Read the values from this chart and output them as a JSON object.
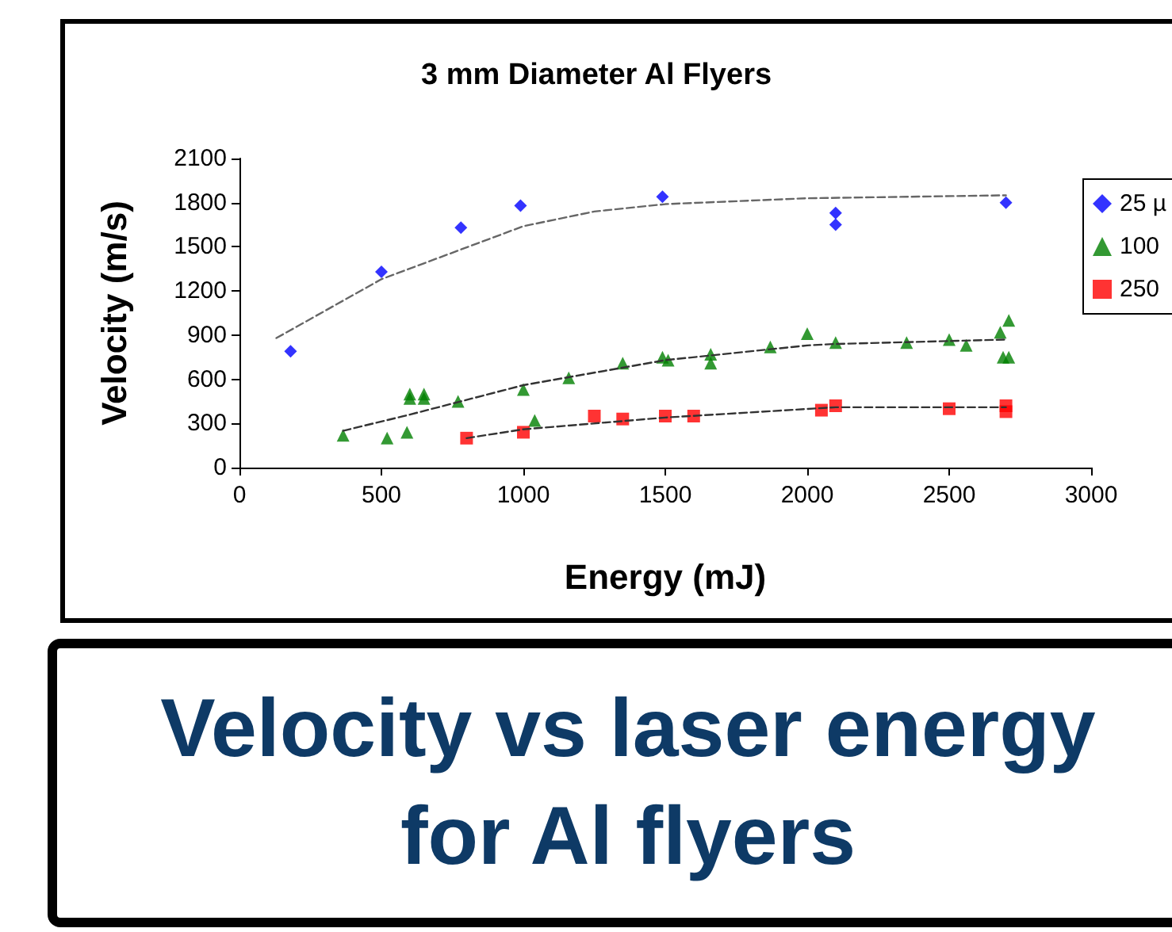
{
  "chart_data": {
    "type": "scatter",
    "title": "3 mm Diameter Al Flyers",
    "xlabel": "Energy (mJ)",
    "ylabel": "Velocity (m/s)",
    "xlim": [
      0,
      3000
    ],
    "xticks": [
      0,
      500,
      1000,
      1500,
      2000,
      2500,
      3000
    ],
    "ylim": [
      0,
      2100
    ],
    "yticks": [
      0,
      300,
      600,
      900,
      1200,
      1500,
      1800,
      2100
    ],
    "grid": false,
    "legend": "right",
    "annotations": [
      "Velocity vs laser energy for Al flyers"
    ],
    "series": [
      {
        "name": "25 µ",
        "color": "#0000ff",
        "marker": "diamond",
        "x": [
          180,
          500,
          780,
          990,
          1490,
          2100,
          2100,
          2700
        ],
        "values": [
          790,
          1330,
          1630,
          1780,
          1840,
          1730,
          1650,
          1800
        ]
      },
      {
        "name": "100",
        "color": "#008000",
        "marker": "triangle",
        "x": [
          365,
          520,
          590,
          600,
          600,
          650,
          650,
          770,
          1000,
          1040,
          1160,
          1350,
          1490,
          1510,
          1660,
          1660,
          1870,
          2000,
          2100,
          2350,
          2500,
          2560,
          2680,
          2690,
          2710,
          2710
        ],
        "values": [
          220,
          200,
          240,
          500,
          470,
          500,
          470,
          450,
          530,
          320,
          610,
          710,
          750,
          730,
          770,
          710,
          820,
          910,
          850,
          850,
          870,
          830,
          920,
          750,
          1000,
          750
        ]
      },
      {
        "name": "250",
        "color": "#ff0000",
        "marker": "square",
        "x": [
          800,
          1000,
          1250,
          1350,
          1500,
          1600,
          2050,
          2100,
          2500,
          2700,
          2700
        ],
        "values": [
          200,
          240,
          350,
          330,
          350,
          350,
          390,
          420,
          400,
          420,
          380
        ]
      },
      {
        "type": "line",
        "color": "#666666",
        "marker": "none",
        "line_style": "dashed",
        "x": [
          130,
          500,
          1000,
          1250,
          1500,
          2000,
          2700
        ],
        "values": [
          880,
          1280,
          1640,
          1740,
          1790,
          1830,
          1850
        ]
      },
      {
        "type": "line",
        "color": "#333333",
        "marker": "none",
        "line_style": "dashed",
        "x": [
          365,
          600,
          1000,
          1500,
          2000,
          2100,
          2700
        ],
        "values": [
          250,
          360,
          560,
          730,
          830,
          840,
          870
        ]
      },
      {
        "type": "line",
        "color": "#333333",
        "marker": "none",
        "line_style": "dashed",
        "x": [
          800,
          1000,
          1500,
          2100,
          2700
        ],
        "values": [
          200,
          260,
          340,
          410,
          410
        ]
      }
    ]
  }
}
